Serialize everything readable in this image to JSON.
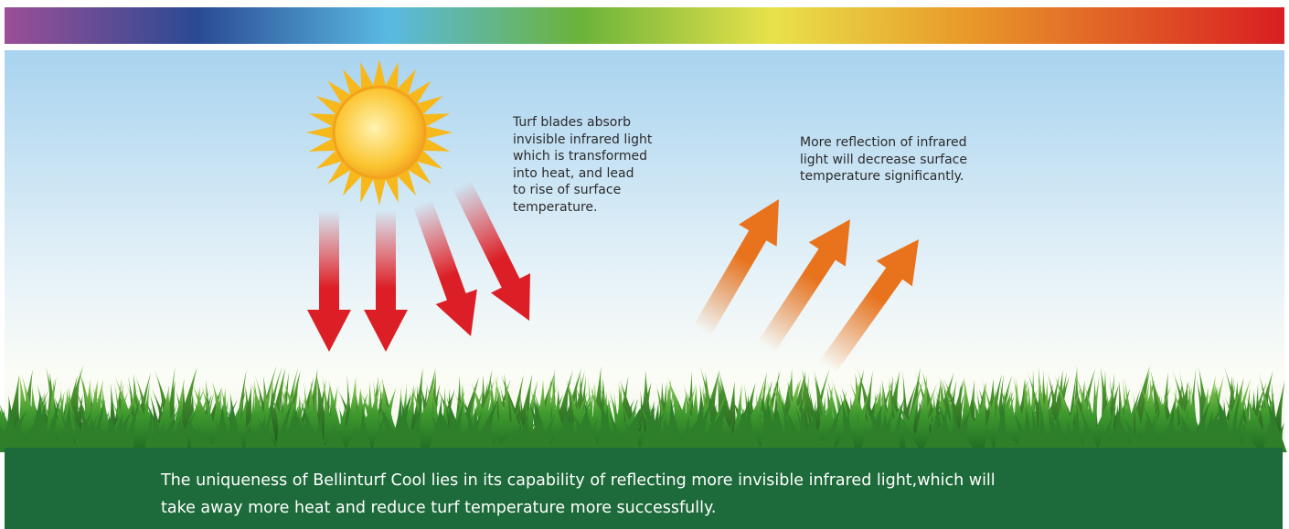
{
  "annotations": {
    "absorb": [
      "Turf blades absorb",
      "invisible infrared light",
      "which is transformed",
      "into heat, and lead",
      "to rise of surface",
      "temperature."
    ],
    "reflect": [
      "More reflection of infrared",
      "light will decrease surface",
      "temperature significantly."
    ]
  },
  "caption": [
    "The uniqueness of Bellinturf Cool lies in its capability of reflecting more invisible infrared light,which will",
    "take away more heat and reduce turf temperature more successfully."
  ]
}
